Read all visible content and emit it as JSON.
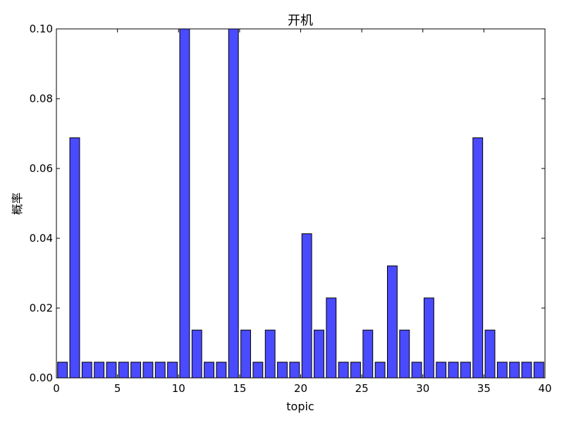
{
  "chart_data": {
    "type": "bar",
    "title": "开机",
    "xlabel": "topic",
    "ylabel": "概率",
    "xlim": [
      0,
      40
    ],
    "ylim": [
      0,
      0.1
    ],
    "x_ticks": [
      0,
      5,
      10,
      15,
      20,
      25,
      30,
      35,
      40
    ],
    "y_ticks": [
      0.0,
      0.02,
      0.04,
      0.06,
      0.08,
      0.1
    ],
    "x_tick_labels": [
      "0",
      "5",
      "10",
      "15",
      "20",
      "25",
      "30",
      "35",
      "40"
    ],
    "y_tick_labels": [
      "0.00",
      "0.02",
      "0.04",
      "0.06",
      "0.08",
      "0.10"
    ],
    "bar_color": "#4a4aff",
    "bar_edge_color": "#000000",
    "bar_width": 0.8,
    "grid": false,
    "categories": [
      0,
      1,
      2,
      3,
      4,
      5,
      6,
      7,
      8,
      9,
      10,
      11,
      12,
      13,
      14,
      15,
      16,
      17,
      18,
      19,
      20,
      21,
      22,
      23,
      24,
      25,
      26,
      27,
      28,
      29,
      30,
      31,
      32,
      33,
      34,
      35,
      36,
      37,
      38,
      39
    ],
    "values": [
      0.0045,
      0.0688,
      0.0045,
      0.0045,
      0.0045,
      0.0045,
      0.0045,
      0.0045,
      0.0045,
      0.0045,
      0.1,
      0.0137,
      0.0045,
      0.0045,
      0.1,
      0.0137,
      0.0045,
      0.0137,
      0.0045,
      0.0045,
      0.0413,
      0.0137,
      0.0229,
      0.0045,
      0.0045,
      0.0137,
      0.0045,
      0.0321,
      0.0137,
      0.0045,
      0.0229,
      0.0045,
      0.0045,
      0.0045,
      0.0688,
      0.0137,
      0.0045,
      0.0045,
      0.0045,
      0.0045
    ]
  }
}
